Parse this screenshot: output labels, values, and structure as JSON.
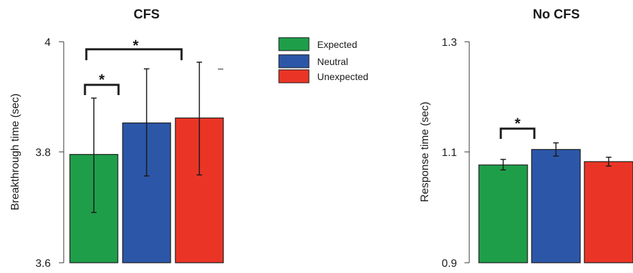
{
  "chart_data": [
    {
      "type": "bar",
      "title": "CFS",
      "ylabel": "Breakthrough time (sec)",
      "ylim": [
        3.6,
        4.0
      ],
      "yticks": [
        "3.6",
        "3.8",
        "4"
      ],
      "categories": [
        "Expected",
        "Neutral",
        "Unexpected"
      ],
      "values": [
        3.796,
        3.853,
        3.862
      ],
      "err_low": [
        3.691,
        3.757,
        3.759
      ],
      "err_high": [
        3.898,
        3.951,
        3.963
      ],
      "significance": [
        {
          "from": 0,
          "to": 1,
          "label": "*"
        },
        {
          "from": 0,
          "to": 2,
          "label": "*"
        }
      ]
    },
    {
      "type": "bar",
      "title": "No CFS",
      "ylabel": "Response time (sec)",
      "ylim": [
        0.9,
        1.3
      ],
      "yticks": [
        "0.9",
        "1.1",
        "1.3"
      ],
      "categories": [
        "Expected",
        "Neutral",
        "Unexpected"
      ],
      "values": [
        1.077,
        1.105,
        1.083
      ],
      "err_low": [
        1.068,
        1.093,
        1.075
      ],
      "err_high": [
        1.087,
        1.117,
        1.091
      ],
      "significance": [
        {
          "from": 0,
          "to": 1,
          "label": "*"
        }
      ]
    }
  ],
  "legend": [
    {
      "label": "Expected",
      "color": "#1f9e4a"
    },
    {
      "label": "Neutral",
      "color": "#2c57a8"
    },
    {
      "label": "Unexpected",
      "color": "#ea3526"
    }
  ]
}
